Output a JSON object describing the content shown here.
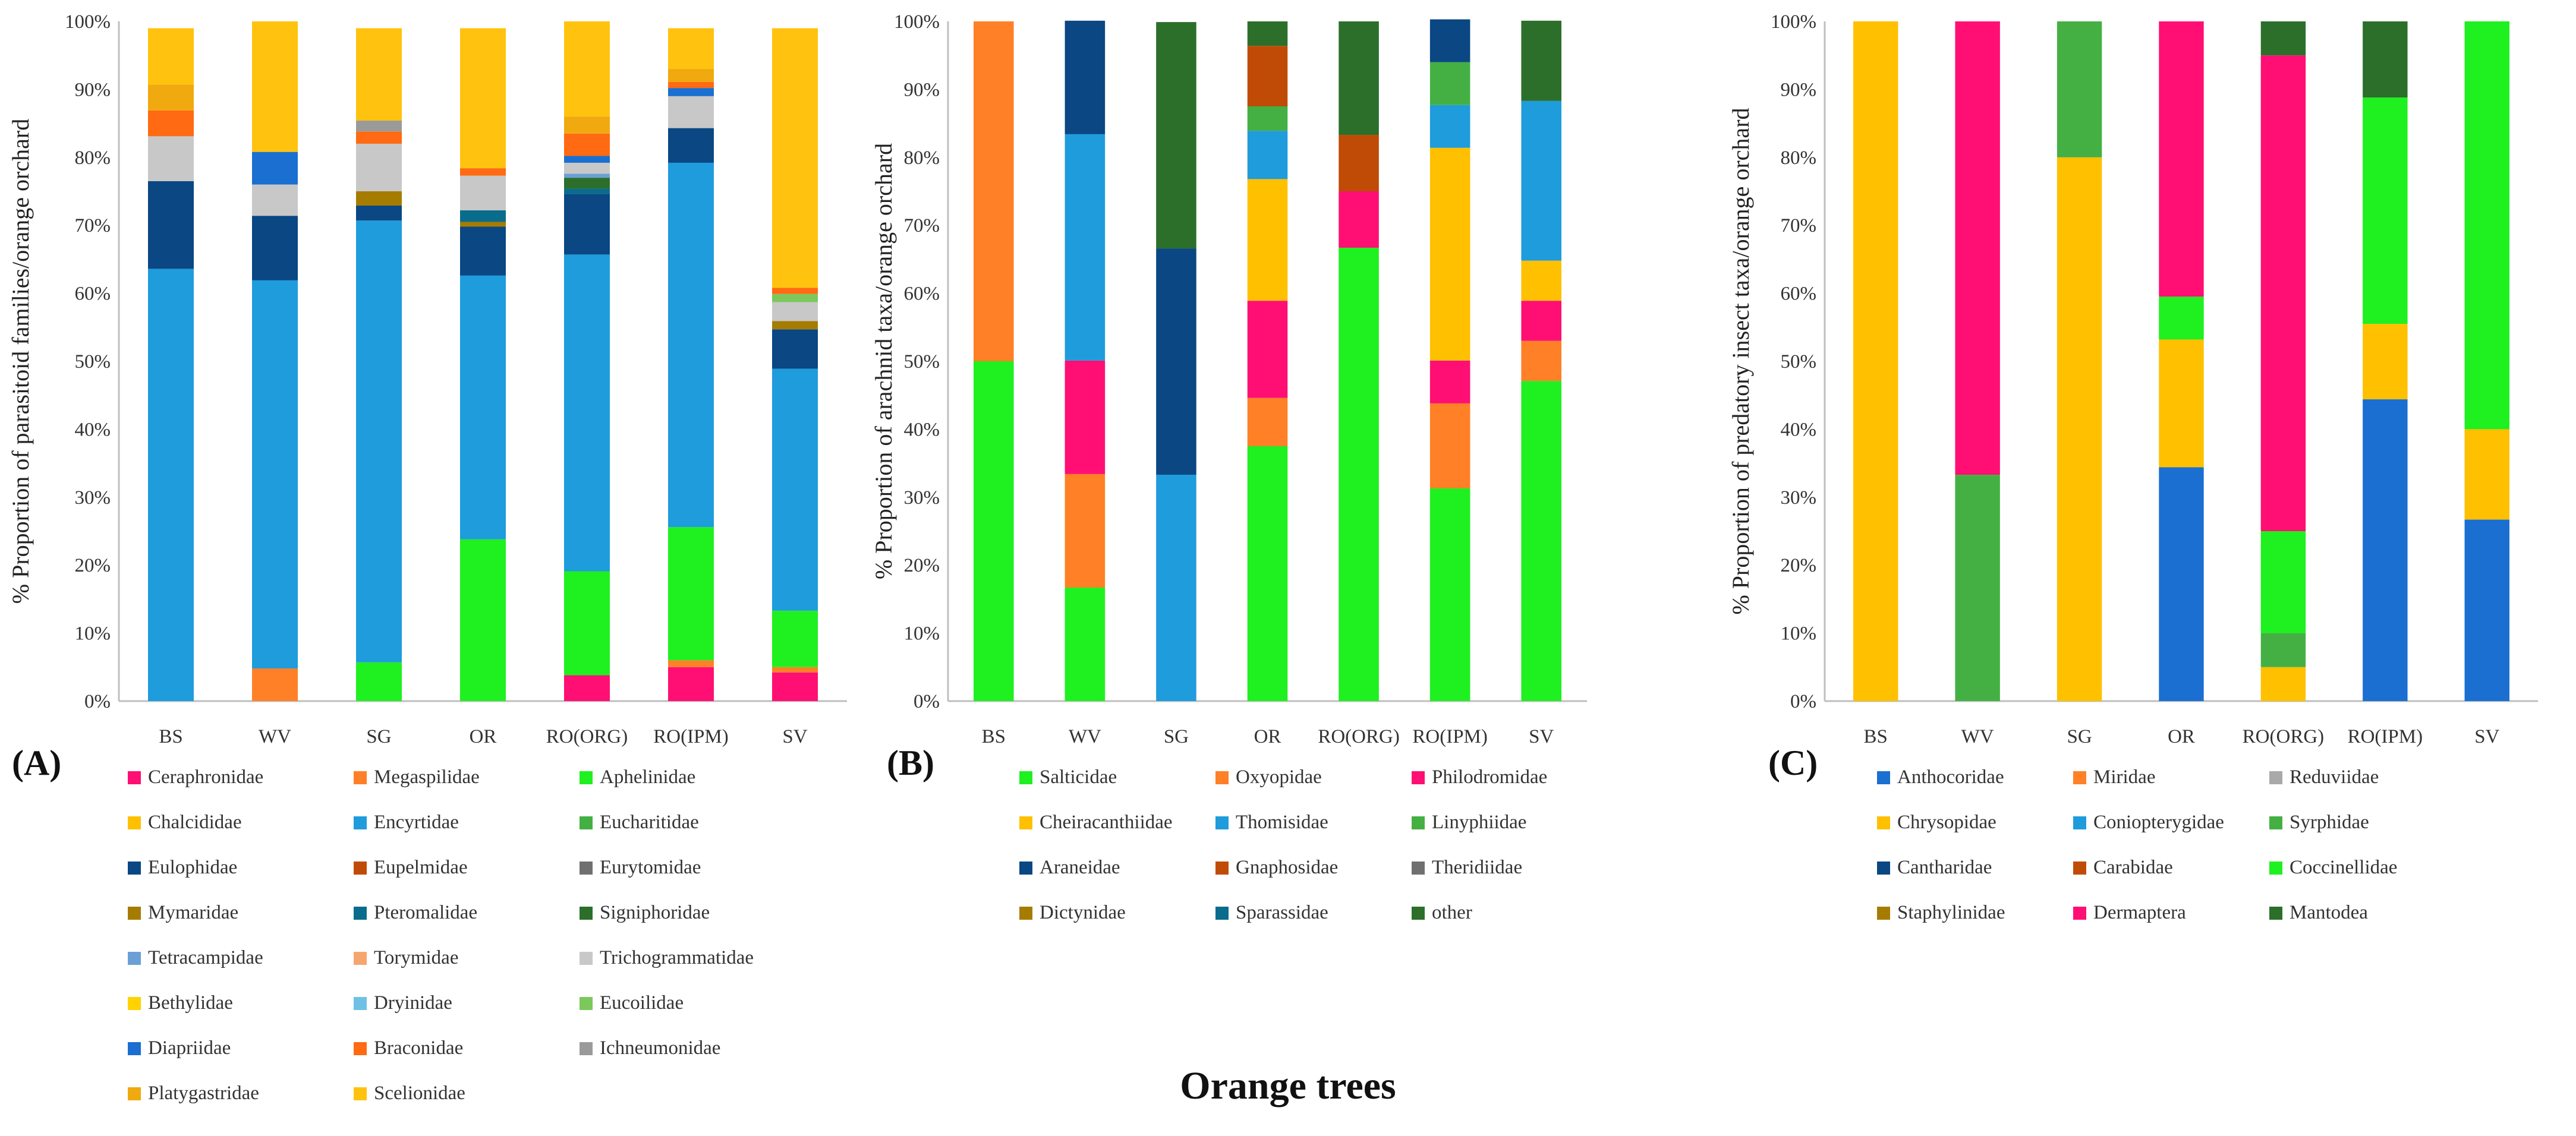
{
  "categories": [
    "BS",
    "WV",
    "SG",
    "OR",
    "RO(ORG)",
    "RO(IPM)",
    "SV"
  ],
  "x_title": "Orange trees",
  "colors": {
    "magenta": "#ff0f73",
    "orange": "#ff8026",
    "bright_green": "#1ff020",
    "yellow": "#ffc000",
    "sky_blue": "#1e9cdc",
    "mid_green": "#44b044",
    "navy": "#0a4783",
    "rust": "#c04b06",
    "gray_dark": "#707070",
    "olive": "#a67c00",
    "teal_blue": "#0a6c8c",
    "dark_green": "#2b6f2b",
    "light_steel": "#6aa0d6",
    "peach": "#f5a66e",
    "light_gray": "#c8c8c8",
    "gold": "#ffd200",
    "light_blue": "#6ec1e4",
    "light_green": "#7cc85c",
    "royal_blue": "#1a6fd1",
    "bright_orange": "#ff6a13",
    "gray_mid": "#9a9a9a",
    "amber": "#f0a90e",
    "amber_yellow": "#ffc30f",
    "gray_light": "#a9a9a9"
  },
  "chart_data": [
    {
      "type": "bar",
      "stacked": true,
      "panel_label": "(A)",
      "ylabel": "% Proportion of parasitoid families/orange orchard",
      "yticks": [
        "0%",
        "10%",
        "20%",
        "30%",
        "40%",
        "50%",
        "60%",
        "70%",
        "80%",
        "90%",
        "100%"
      ],
      "ylim": [
        0,
        100
      ],
      "categories": [
        "BS",
        "WV",
        "SG",
        "OR",
        "RO(ORG)",
        "RO(IPM)",
        "SV"
      ],
      "series": [
        {
          "name": "Ceraphronidae",
          "color": "#ff0f73",
          "values": [
            0,
            0,
            0,
            0,
            3.8,
            5.0,
            4.2
          ]
        },
        {
          "name": "Megaspilidae",
          "color": "#ff8026",
          "values": [
            0,
            4.8,
            0,
            0,
            0,
            1.0,
            0.8
          ]
        },
        {
          "name": "Aphelinidae",
          "color": "#1ff020",
          "values": [
            0,
            0,
            5.7,
            23.8,
            15.3,
            19.6,
            8.3
          ]
        },
        {
          "name": "Chalcididae",
          "color": "#ffc000",
          "values": [
            0,
            0,
            0,
            0,
            0,
            0,
            0
          ]
        },
        {
          "name": "Encyrtidae",
          "color": "#1e9cdc",
          "values": [
            63.6,
            57.1,
            65.0,
            38.8,
            46.6,
            53.6,
            35.6
          ]
        },
        {
          "name": "Eucharitidae",
          "color": "#44b044",
          "values": [
            0,
            0,
            0,
            0,
            0,
            0,
            0
          ]
        },
        {
          "name": "Eulophidae",
          "color": "#0a4783",
          "values": [
            12.9,
            9.5,
            2.2,
            7.2,
            8.9,
            5.1,
            5.8
          ]
        },
        {
          "name": "Eupelmidae",
          "color": "#c04b06",
          "values": [
            0,
            0,
            0,
            0,
            0,
            0,
            0
          ]
        },
        {
          "name": "Eurytomidae",
          "color": "#707070",
          "values": [
            0,
            0,
            0,
            0,
            0,
            0,
            0
          ]
        },
        {
          "name": "Mymaridae",
          "color": "#a67c00",
          "values": [
            0,
            0,
            2.1,
            0.7,
            0,
            0,
            1.2
          ]
        },
        {
          "name": "Pteromalidae",
          "color": "#0a6c8c",
          "values": [
            0,
            0,
            0,
            1.7,
            0.8,
            0,
            0
          ]
        },
        {
          "name": "Signiphoridae",
          "color": "#2b6f2b",
          "values": [
            0,
            0,
            0,
            0,
            1.6,
            0,
            0
          ]
        },
        {
          "name": "Tetracampidae",
          "color": "#6aa0d6",
          "values": [
            0,
            0,
            0,
            0,
            0.6,
            0,
            0
          ]
        },
        {
          "name": "Torymidae",
          "color": "#f5a66e",
          "values": [
            0,
            0,
            0,
            0,
            0,
            0,
            0
          ]
        },
        {
          "name": "Trichogrammatidae",
          "color": "#c8c8c8",
          "values": [
            6.6,
            4.6,
            7.0,
            5.1,
            1.6,
            4.7,
            2.8
          ]
        },
        {
          "name": "Bethylidae",
          "color": "#ffd200",
          "values": [
            0,
            0,
            0,
            0,
            0,
            0,
            0
          ]
        },
        {
          "name": "Dryinidae",
          "color": "#6ec1e4",
          "values": [
            0,
            0,
            0,
            0,
            0,
            0,
            0
          ]
        },
        {
          "name": "Eucoilidae",
          "color": "#7cc85c",
          "values": [
            0,
            0,
            0,
            0,
            0,
            0,
            1.2
          ]
        },
        {
          "name": "Diapriidae",
          "color": "#1a6fd1",
          "values": [
            0,
            4.8,
            0,
            0,
            1.0,
            1.2,
            0
          ]
        },
        {
          "name": "Braconidae",
          "color": "#ff6a13",
          "values": [
            3.8,
            0,
            1.8,
            1.1,
            3.3,
            0.9,
            0.9
          ]
        },
        {
          "name": "Ichneumonidae",
          "color": "#9a9a9a",
          "values": [
            0,
            0,
            1.6,
            0,
            0,
            0,
            0
          ]
        },
        {
          "name": "Platygastridae",
          "color": "#f0a90e",
          "values": [
            3.8,
            0,
            0,
            0,
            2.5,
            1.9,
            0
          ]
        },
        {
          "name": "Scelionidae",
          "color": "#ffc30f",
          "values": [
            8.3,
            19.2,
            13.6,
            20.6,
            14.0,
            6.0,
            38.2
          ]
        }
      ]
    },
    {
      "type": "bar",
      "stacked": true,
      "panel_label": "(B)",
      "ylabel": "% Proportion of arachnid taxa/orange orchard",
      "yticks": [
        "0%",
        "10%",
        "20%",
        "30%",
        "40%",
        "50%",
        "60%",
        "70%",
        "80%",
        "90%",
        "100%"
      ],
      "ylim": [
        0,
        100
      ],
      "categories": [
        "BS",
        "WV",
        "SG",
        "OR",
        "RO(ORG)",
        "RO(IPM)",
        "SV"
      ],
      "series": [
        {
          "name": "Salticidae",
          "color": "#1ff020",
          "values": [
            50.0,
            16.7,
            0,
            37.5,
            66.7,
            31.3,
            47.1
          ]
        },
        {
          "name": "Oxyopidae",
          "color": "#ff8026",
          "values": [
            50.0,
            16.7,
            0,
            7.1,
            0,
            12.5,
            5.9
          ]
        },
        {
          "name": "Philodromidae",
          "color": "#ff0f73",
          "values": [
            0,
            16.7,
            0,
            14.3,
            8.3,
            6.3,
            5.9
          ]
        },
        {
          "name": "Cheiracanthiidae",
          "color": "#ffc000",
          "values": [
            0,
            0,
            0,
            17.9,
            0,
            31.3,
            5.9
          ]
        },
        {
          "name": "Thomisidae",
          "color": "#1e9cdc",
          "values": [
            0,
            33.3,
            33.3,
            7.1,
            0,
            6.3,
            23.5
          ]
        },
        {
          "name": "Linyphiidae",
          "color": "#44b044",
          "values": [
            0,
            0,
            0,
            3.6,
            0,
            6.3,
            0
          ]
        },
        {
          "name": "Araneidae",
          "color": "#0a4783",
          "values": [
            0,
            16.7,
            33.3,
            0,
            0,
            6.3,
            0
          ]
        },
        {
          "name": "Gnaphosidae",
          "color": "#c04b06",
          "values": [
            0,
            0,
            0,
            8.9,
            8.3,
            0,
            0
          ]
        },
        {
          "name": "Theridiidae",
          "color": "#707070",
          "values": [
            0,
            0,
            0,
            0,
            0,
            0,
            0
          ]
        },
        {
          "name": "Dictynidae",
          "color": "#a67c00",
          "values": [
            0,
            0,
            0,
            0,
            0,
            0,
            0
          ]
        },
        {
          "name": "Sparassidae",
          "color": "#0a6c8c",
          "values": [
            0,
            0,
            0,
            0,
            0,
            0,
            0
          ]
        },
        {
          "name": "other",
          "color": "#2b6f2b",
          "values": [
            0,
            0,
            33.3,
            3.6,
            16.7,
            0,
            11.8
          ]
        }
      ]
    },
    {
      "type": "bar",
      "stacked": true,
      "panel_label": "(C)",
      "ylabel": "% Proportion of predatory insect taxa/orange orchard",
      "yticks": [
        "0%",
        "10%",
        "20%",
        "30%",
        "40%",
        "50%",
        "60%",
        "70%",
        "80%",
        "90%",
        "100%"
      ],
      "ylim": [
        0,
        100
      ],
      "categories": [
        "BS",
        "WV",
        "SG",
        "OR",
        "RO(ORG)",
        "RO(IPM)",
        "SV"
      ],
      "series": [
        {
          "name": "Anthocoridae",
          "color": "#1a6fd1",
          "values": [
            0,
            0,
            0,
            34.4,
            0,
            44.4,
            26.7
          ]
        },
        {
          "name": "Miridae",
          "color": "#ff8026",
          "values": [
            0,
            0,
            0,
            0,
            0,
            0,
            0
          ]
        },
        {
          "name": "Reduviidae",
          "color": "#a9a9a9",
          "values": [
            0,
            0,
            0,
            0,
            0,
            0,
            0
          ]
        },
        {
          "name": "Chrysopidae",
          "color": "#ffc000",
          "values": [
            100,
            0,
            80.0,
            18.8,
            5.0,
            11.1,
            13.3
          ]
        },
        {
          "name": "Coniopterygidae",
          "color": "#1e9cdc",
          "values": [
            0,
            0,
            0,
            0,
            0,
            0,
            0
          ]
        },
        {
          "name": "Syrphidae",
          "color": "#44b044",
          "values": [
            0,
            33.3,
            20.0,
            0,
            5.0,
            0,
            0
          ]
        },
        {
          "name": "Cantharidae",
          "color": "#0a4783",
          "values": [
            0,
            0,
            0,
            0,
            0,
            0,
            0
          ]
        },
        {
          "name": "Carabidae",
          "color": "#c04b06",
          "values": [
            0,
            0,
            0,
            0,
            0,
            0,
            0
          ]
        },
        {
          "name": "Coccinellidae",
          "color": "#1ff020",
          "values": [
            0,
            0,
            0,
            6.3,
            15.0,
            33.3,
            60.0
          ]
        },
        {
          "name": "Staphylinidae",
          "color": "#a67c00",
          "values": [
            0,
            0,
            0,
            0,
            0,
            0,
            0
          ]
        },
        {
          "name": "Dermaptera",
          "color": "#ff0f73",
          "values": [
            0,
            66.7,
            0,
            40.5,
            70.0,
            0,
            0
          ]
        },
        {
          "name": "Mantodea",
          "color": "#2b6f2b",
          "values": [
            0,
            0,
            0,
            0,
            5.0,
            11.2,
            0
          ]
        }
      ]
    }
  ]
}
